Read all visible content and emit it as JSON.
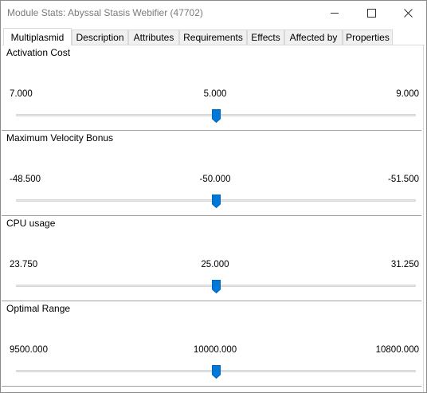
{
  "window": {
    "title": "Module Stats: Abyssal Stasis Webifier (47702)",
    "accent_color": "#0078d7"
  },
  "tabs": [
    {
      "label": "Multiplasmid",
      "active": true
    },
    {
      "label": "Description",
      "active": false
    },
    {
      "label": "Attributes",
      "active": false
    },
    {
      "label": "Requirements",
      "active": false
    },
    {
      "label": "Effects",
      "active": false
    },
    {
      "label": "Affected by",
      "active": false
    },
    {
      "label": "Properties",
      "active": false
    }
  ],
  "stats": [
    {
      "name": "Activation Cost",
      "min": "7.000",
      "current": "5.000",
      "max": "9.000",
      "slider_fraction": 0.5
    },
    {
      "name": "Maximum Velocity Bonus",
      "min": "-48.500",
      "current": "-50.000",
      "max": "-51.500",
      "slider_fraction": 0.5
    },
    {
      "name": "CPU usage",
      "min": "23.750",
      "current": "25.000",
      "max": "31.250",
      "slider_fraction": 0.5
    },
    {
      "name": "Optimal Range",
      "min": "9500.000",
      "current": "10000.000",
      "max": "10800.000",
      "slider_fraction": 0.5
    }
  ]
}
